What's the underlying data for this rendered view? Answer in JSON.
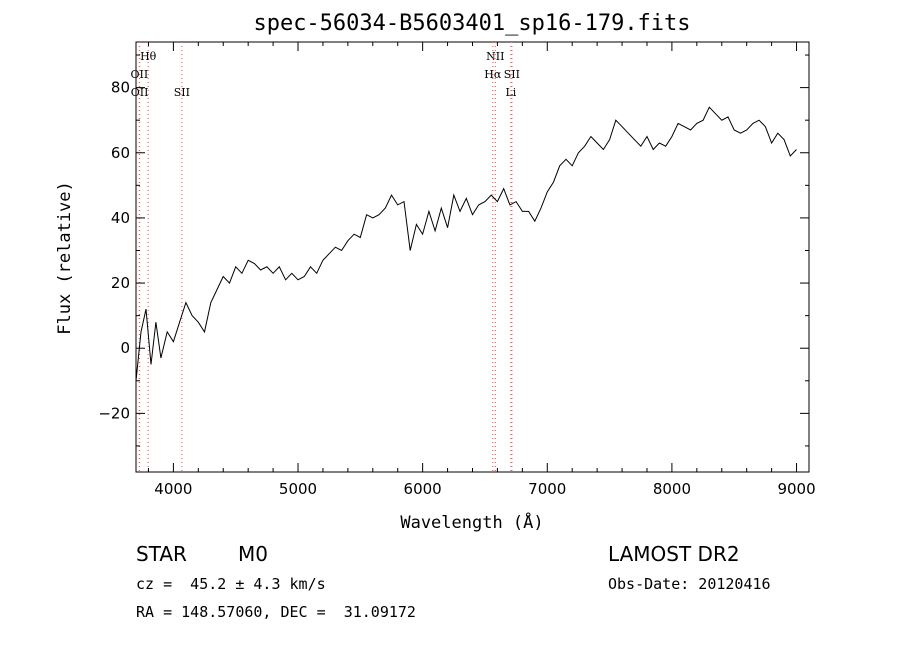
{
  "chart_data": {
    "type": "line",
    "title": "spec-56034-B5603401_sp16-179.fits",
    "xlabel": "Wavelength (Å)",
    "ylabel": "Flux (relative)",
    "xlim": [
      3700,
      9100
    ],
    "ylim": [
      -38,
      94
    ],
    "xticks": [
      4000,
      5000,
      6000,
      7000,
      8000,
      9000
    ],
    "yticks": [
      -20,
      0,
      20,
      40,
      60,
      80
    ],
    "grid": false,
    "series": [
      {
        "values_x": [
          3700,
          3740,
          3780,
          3820,
          3860,
          3900,
          3950,
          4000,
          4050,
          4100,
          4150,
          4200,
          4250,
          4300,
          4350,
          4400,
          4450,
          4500,
          4550,
          4600,
          4650,
          4700,
          4750,
          4800,
          4850,
          4900,
          4950,
          5000,
          5050,
          5100,
          5150,
          5200,
          5250,
          5300,
          5350,
          5400,
          5450,
          5500,
          5550,
          5600,
          5650,
          5700,
          5750,
          5800,
          5850,
          5900,
          5950,
          6000,
          6050,
          6100,
          6150,
          6200,
          6250,
          6300,
          6350,
          6400,
          6450,
          6500,
          6550,
          6600,
          6650,
          6700,
          6750,
          6800,
          6850,
          6900,
          6950,
          7000,
          7050,
          7100,
          7150,
          7200,
          7250,
          7300,
          7350,
          7400,
          7450,
          7500,
          7550,
          7600,
          7650,
          7700,
          7750,
          7800,
          7850,
          7900,
          7950,
          8000,
          8050,
          8100,
          8150,
          8200,
          8250,
          8300,
          8350,
          8400,
          8450,
          8500,
          8550,
          8600,
          8650,
          8700,
          8750,
          8800,
          8850,
          8900,
          8950,
          9000
        ],
        "values_y": [
          -10,
          5,
          12,
          -5,
          8,
          -3,
          5,
          2,
          8,
          14,
          10,
          8,
          5,
          14,
          18,
          22,
          20,
          25,
          23,
          27,
          26,
          24,
          25,
          23,
          25,
          21,
          23,
          21,
          22,
          25,
          23,
          27,
          29,
          31,
          30,
          33,
          35,
          34,
          41,
          40,
          41,
          43,
          47,
          44,
          45,
          30,
          38,
          35,
          42,
          36,
          43,
          37,
          47,
          42,
          46,
          41,
          44,
          45,
          47,
          45,
          49,
          44,
          45,
          42,
          42,
          39,
          43,
          48,
          51,
          56,
          58,
          56,
          60,
          62,
          65,
          63,
          61,
          64,
          70,
          68,
          66,
          64,
          62,
          65,
          61,
          63,
          62,
          65,
          69,
          68,
          67,
          69,
          70,
          74,
          72,
          70,
          71,
          67,
          66,
          67,
          69,
          70,
          68,
          63,
          66,
          64,
          59,
          61
        ]
      }
    ],
    "line_markers": [
      {
        "label": "Hθ",
        "x": 3798,
        "row": 0
      },
      {
        "label": "OII",
        "x": 3727,
        "row": 1
      },
      {
        "label": "OII",
        "x": 3729,
        "row": 2
      },
      {
        "label": "SII",
        "x": 4068,
        "row": 2
      },
      {
        "label": "NII",
        "x": 6583,
        "row": 0
      },
      {
        "label": "Hα",
        "x": 6563,
        "row": 1
      },
      {
        "label": "SII",
        "x": 6716,
        "row": 1
      },
      {
        "label": "Li",
        "x": 6708,
        "row": 2
      }
    ],
    "marker_color": "#ff6060"
  },
  "info": {
    "class": "STAR",
    "subclass": "M0",
    "survey": "LAMOST DR2",
    "redshift": "cz =  45.2 ± 4.3 km/s",
    "obs_date": "Obs-Date: 20120416",
    "coords": "RA = 148.57060, DEC =  31.09172"
  }
}
